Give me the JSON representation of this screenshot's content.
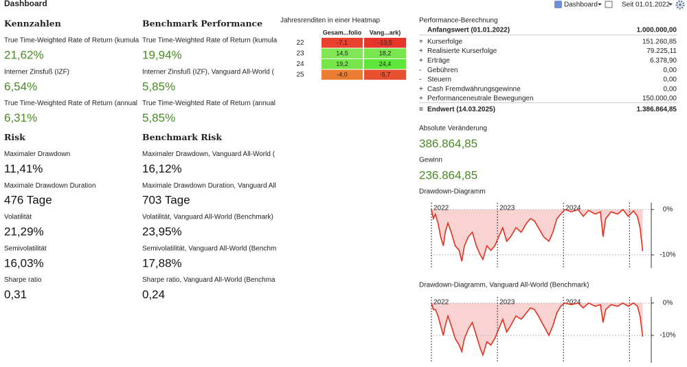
{
  "header": {
    "title": "Dashboard",
    "view_menu": "Dashboard",
    "period_menu": "Seit 01.01.2022"
  },
  "columns": [
    {
      "sections": [
        {
          "heading": "Kennzahlen",
          "color": "#4a8a26",
          "items": [
            {
              "label": "True Time-Weighted Rate of Return (kumula",
              "value": "21,62%"
            },
            {
              "label": "Interner Zinsfuß (IZF)",
              "value": "6,54%"
            },
            {
              "label": "True Time-Weighted Rate of Return (annual",
              "value": "6,31%"
            }
          ]
        },
        {
          "heading": "Risk",
          "color": "#111111",
          "items": [
            {
              "label": "Maximaler Drawdown",
              "value": "11,41%"
            },
            {
              "label": "Maximale Drawdown Duration",
              "value": "476 Tage"
            },
            {
              "label": "Volatilität",
              "value": "21,29%"
            },
            {
              "label": "Semivolatilität",
              "value": "16,03%"
            },
            {
              "label": "Sharpe ratio",
              "value": "0,31"
            }
          ]
        }
      ]
    },
    {
      "sections": [
        {
          "heading": "Benchmark Performance",
          "color": "#4a8a26",
          "items": [
            {
              "label": "True Time-Weighted Rate of Return (kumula",
              "value": "19,94%"
            },
            {
              "label": "Interner Zinsfuß (IZF), Vanguard All-World (",
              "value": "5,85%"
            },
            {
              "label": "True Time-Weighted Rate of Return (annual",
              "value": "5,85%"
            }
          ]
        },
        {
          "heading": "Benchmark Risk",
          "color": "#111111",
          "items": [
            {
              "label": "Maximaler Drawdown, Vanguard All-World (",
              "value": "16,12%"
            },
            {
              "label": "Maximale Drawdown Duration, Vanguard All",
              "value": "703 Tage"
            },
            {
              "label": "Volatilität, Vanguard All-World (Benchmark)",
              "value": "23,95%"
            },
            {
              "label": "Semivolatilität, Vanguard All-World (Benchm",
              "value": "17,88%"
            },
            {
              "label": "Sharpe ratio, Vanguard All-World (Benchma",
              "value": "0,24"
            }
          ]
        }
      ]
    }
  ],
  "heatmap": {
    "title": "Jahresrenditen in einer Heatmap",
    "columns": [
      "Gesam...folio",
      "Vang...ark)"
    ],
    "rows": [
      {
        "label": "22",
        "values": [
          -7.1,
          -13.5
        ],
        "value_labels": [
          "-7,1",
          "-13,5"
        ],
        "colors": [
          "#e8412f",
          "#e6362c"
        ]
      },
      {
        "label": "23",
        "values": [
          14.5,
          18.2
        ],
        "value_labels": [
          "14,5",
          "18,2"
        ],
        "colors": [
          "#80e655",
          "#78e64c"
        ]
      },
      {
        "label": "24",
        "values": [
          19.2,
          24.4
        ],
        "value_labels": [
          "19,2",
          "24,4"
        ],
        "colors": [
          "#76e64a",
          "#5fe63a"
        ]
      },
      {
        "label": "25",
        "values": [
          -4.0,
          -5.7
        ],
        "value_labels": [
          "-4,0",
          "-5,7"
        ],
        "colors": [
          "#ea7d32",
          "#e8512f"
        ]
      }
    ]
  },
  "performance": {
    "title": "Performance-Berechnung",
    "rows": [
      {
        "label": "Anfangswert (01.01.2022)",
        "value": "1.000.000,00",
        "bold": true
      },
      {
        "sign": "+",
        "label": "Kurserfolge",
        "value": "151.260,85"
      },
      {
        "sign": "+",
        "label": "Realisierte Kurserfolge",
        "value": "79.225,11"
      },
      {
        "sign": "+",
        "label": "Erträge",
        "value": "6.378,90"
      },
      {
        "sign": "-",
        "label": "Gebühren",
        "value": "0,00"
      },
      {
        "sign": "-",
        "label": "Steuern",
        "value": "0,00"
      },
      {
        "sign": "+",
        "label": "Cash Fremdwährungsgewinne",
        "value": "0,00"
      },
      {
        "sign": "+",
        "label": "Performanceneutrale Bewegungen",
        "value": "150.000,00"
      },
      {
        "sign": "=",
        "label": "Endwert (14.03.2025)",
        "value": "1.386.864,85",
        "bold": true
      }
    ]
  },
  "metrics": [
    {
      "label": "Absolute Veränderung",
      "value": "386.864,85",
      "color": "#4a8a26"
    },
    {
      "label": "Gewinn",
      "value": "236.864,85",
      "color": "#4a8a26"
    }
  ],
  "charts": [
    {
      "type": "line",
      "title": "Drawdown-Diagramm",
      "color": "#e0301e",
      "fill": "#f9d3d1",
      "x": [
        2022.0,
        2022.03,
        2022.06,
        2022.1,
        2022.14,
        2022.18,
        2022.21,
        2022.25,
        2022.3,
        2022.36,
        2022.42,
        2022.46,
        2022.5,
        2022.56,
        2022.62,
        2022.68,
        2022.74,
        2022.78,
        2022.84,
        2022.9,
        2022.96,
        2023.02,
        2023.08,
        2023.14,
        2023.2,
        2023.28,
        2023.36,
        2023.44,
        2023.5,
        2023.56,
        2023.62,
        2023.7,
        2023.78,
        2023.84,
        2023.9,
        2023.96,
        2024.02,
        2024.12,
        2024.22,
        2024.3,
        2024.38,
        2024.48,
        2024.56,
        2024.6,
        2024.64,
        2024.72,
        2024.82,
        2024.9,
        2024.98,
        2025.06,
        2025.12,
        2025.16,
        2025.2
      ],
      "values": [
        0,
        -2,
        -1,
        -3,
        -6,
        -8,
        -5,
        -3,
        -5,
        -8,
        -9,
        -11.4,
        -8,
        -6,
        -5,
        -8,
        -10,
        -11,
        -8,
        -9,
        -8,
        -6,
        -4,
        -7,
        -6,
        -4,
        -5,
        -3,
        -2,
        -2.5,
        -4,
        -6,
        -7,
        -5,
        -2,
        -1,
        0,
        -0.5,
        0,
        -1.5,
        -0.2,
        -1,
        -0.5,
        -6,
        -2,
        -0.5,
        -1,
        0,
        -1.5,
        -0.3,
        -1.5,
        -4,
        -9.2
      ],
      "xlim": [
        2021.99,
        2025.33
      ],
      "ylim": [
        -12.9,
        1.5
      ],
      "xticks": [
        2022,
        2023,
        2024,
        {
          "value": 2025,
          "label": null
        }
      ],
      "yticks": [
        {
          "value": 0,
          "label": "0%"
        },
        {
          "value": -10,
          "label": "-10%"
        }
      ]
    },
    {
      "type": "line",
      "title": "Drawdown-Diagramm, Vanguard All-World (Benchmark)",
      "color": "#e0301e",
      "fill": "#f9d3d1",
      "x": [
        2022.0,
        2022.03,
        2022.06,
        2022.1,
        2022.14,
        2022.18,
        2022.21,
        2022.25,
        2022.3,
        2022.36,
        2022.42,
        2022.46,
        2022.5,
        2022.56,
        2022.62,
        2022.68,
        2022.74,
        2022.78,
        2022.84,
        2022.9,
        2022.96,
        2023.02,
        2023.08,
        2023.14,
        2023.2,
        2023.28,
        2023.36,
        2023.44,
        2023.5,
        2023.56,
        2023.62,
        2023.7,
        2023.78,
        2023.84,
        2023.9,
        2023.96,
        2024.02,
        2024.12,
        2024.22,
        2024.3,
        2024.38,
        2024.48,
        2024.56,
        2024.6,
        2024.64,
        2024.72,
        2024.82,
        2024.9,
        2024.98,
        2025.06,
        2025.12,
        2025.16,
        2025.2
      ],
      "values": [
        0,
        -2,
        -2,
        -4,
        -7,
        -10,
        -7,
        -4,
        -7,
        -11,
        -13,
        -15,
        -11,
        -8,
        -6,
        -10,
        -14,
        -16.1,
        -12,
        -13,
        -11,
        -8,
        -5,
        -9,
        -7,
        -4,
        -5,
        -3,
        -1.5,
        -2,
        -4,
        -7,
        -10,
        -7,
        -3,
        -1,
        0,
        -0.5,
        0,
        -1.5,
        0,
        -1,
        -0.5,
        -6,
        -2,
        -0.5,
        -1,
        0,
        -1,
        0,
        -1,
        -4,
        -10.4
      ],
      "xlim": [
        2021.99,
        2025.33
      ],
      "ylim": [
        -18.5,
        1.9
      ],
      "xticks": [
        2022,
        2023,
        2024,
        {
          "value": 2025,
          "label": null
        }
      ],
      "yticks": [
        {
          "value": 0,
          "label": "0%"
        },
        {
          "value": -10,
          "label": "-10%"
        }
      ]
    }
  ]
}
